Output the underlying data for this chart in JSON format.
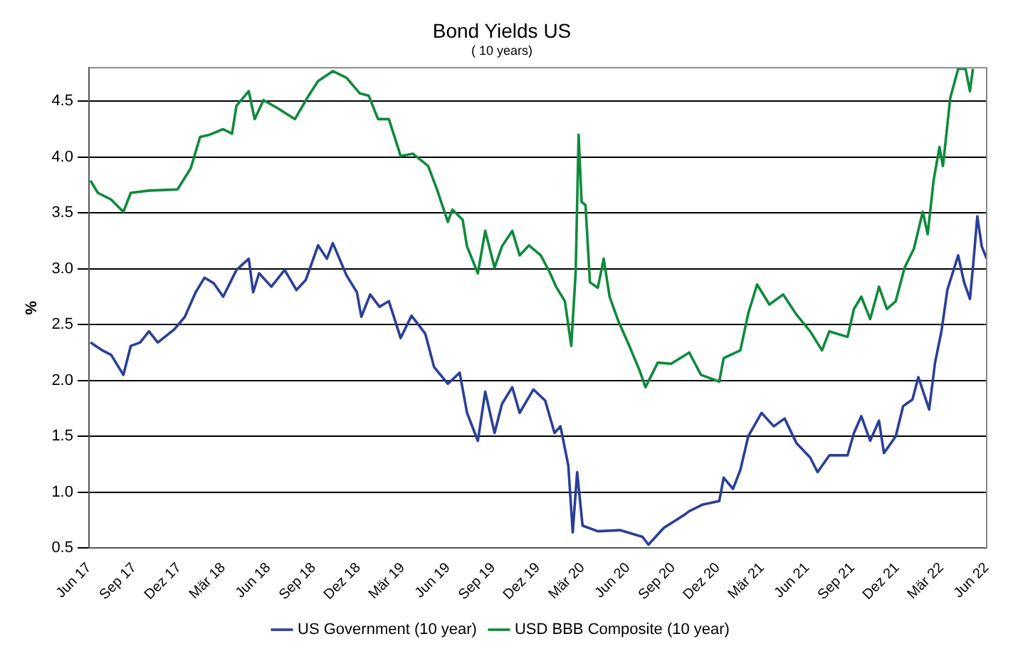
{
  "chart_data": {
    "type": "line",
    "title": "Bond Yields US",
    "subtitle": "( 10 years)",
    "ylabel": "%",
    "xlim": [
      "2017-06",
      "2022-06"
    ],
    "xticks": [
      {
        "value": "2017-06",
        "label": "Jun 17"
      },
      {
        "value": "2017-09",
        "label": "Sep 17"
      },
      {
        "value": "2017-12",
        "label": "Dez 17"
      },
      {
        "value": "2018-03",
        "label": "Mär 18"
      },
      {
        "value": "2018-06",
        "label": "Jun 18"
      },
      {
        "value": "2018-09",
        "label": "Sep 18"
      },
      {
        "value": "2018-12",
        "label": "Dez 18"
      },
      {
        "value": "2019-03",
        "label": "Mär 19"
      },
      {
        "value": "2019-06",
        "label": "Jun 19"
      },
      {
        "value": "2019-09",
        "label": "Sep 19"
      },
      {
        "value": "2019-12",
        "label": "Dez 19"
      },
      {
        "value": "2020-03",
        "label": "Mär 20"
      },
      {
        "value": "2020-06",
        "label": "Jun 20"
      },
      {
        "value": "2020-09",
        "label": "Sep 20"
      },
      {
        "value": "2020-12",
        "label": "Dez 20"
      },
      {
        "value": "2021-03",
        "label": "Mär 21"
      },
      {
        "value": "2021-06",
        "label": "Jun 21"
      },
      {
        "value": "2021-09",
        "label": "Sep 21"
      },
      {
        "value": "2021-12",
        "label": "Dez 21"
      },
      {
        "value": "2022-03",
        "label": "Mär 22"
      },
      {
        "value": "2022-06",
        "label": "Jun 22"
      }
    ],
    "ylim": [
      0.5,
      4.8
    ],
    "yticks": [
      {
        "value": 0.5,
        "label": "0.5"
      },
      {
        "value": 1,
        "label": "1.0"
      },
      {
        "value": 1.5,
        "label": "1.5"
      },
      {
        "value": 2,
        "label": "2.0"
      },
      {
        "value": 2.5,
        "label": "2.5"
      },
      {
        "value": 3,
        "label": "3.0"
      },
      {
        "value": 3.5,
        "label": "3.5"
      },
      {
        "value": 4,
        "label": "4.0"
      },
      {
        "value": 4.5,
        "label": "4.5"
      }
    ],
    "grid": "y",
    "legend": "bottom",
    "marker": "none",
    "line_style": "solid",
    "series": [
      {
        "name": "US Government (10 year)",
        "color": "#2b3f97",
        "x": [
          "2017-06-04",
          "2017-06-28",
          "2017-07-16",
          "2017-08-10",
          "2017-08-25",
          "2017-09-13",
          "2017-10-01",
          "2017-10-19",
          "2017-11-22",
          "2017-12-13",
          "2018-01-04",
          "2018-01-22",
          "2018-02-10",
          "2018-03-01",
          "2018-03-28",
          "2018-04-22",
          "2018-05-01",
          "2018-05-13",
          "2018-06-07",
          "2018-07-04",
          "2018-07-28",
          "2018-08-16",
          "2018-09-10",
          "2018-09-28",
          "2018-10-10",
          "2018-11-07",
          "2018-11-28",
          "2018-12-07",
          "2018-12-25",
          "2019-01-13",
          "2019-02-01",
          "2019-02-25",
          "2019-03-19",
          "2019-04-16",
          "2019-05-04",
          "2019-06-01",
          "2019-06-25",
          "2019-07-10",
          "2019-08-01",
          "2019-08-16",
          "2019-09-04",
          "2019-09-19",
          "2019-10-10",
          "2019-10-25",
          "2019-11-22",
          "2019-12-16",
          "2020-01-04",
          "2020-01-16",
          "2020-02-01",
          "2020-02-10",
          "2020-02-19",
          "2020-03-01",
          "2020-04-01",
          "2020-05-16",
          "2020-07-01",
          "2020-07-13",
          "2020-08-13",
          "2020-09-25",
          "2020-10-04",
          "2020-11-01",
          "2020-12-04",
          "2020-12-13",
          "2021-01-01",
          "2021-01-16",
          "2021-02-01",
          "2021-02-28",
          "2021-03-25",
          "2021-04-16",
          "2021-05-10",
          "2021-06-07",
          "2021-06-22",
          "2021-07-16",
          "2021-08-22",
          "2021-09-04",
          "2021-09-19",
          "2021-10-07",
          "2021-10-25",
          "2021-11-04",
          "2021-11-28",
          "2021-12-13",
          "2022-01-01",
          "2022-01-13",
          "2022-02-04",
          "2022-02-16",
          "2022-03-01",
          "2022-03-13",
          "2022-04-04",
          "2022-04-16",
          "2022-04-28",
          "2022-05-04",
          "2022-05-13",
          "2022-05-22",
          "2022-06-01"
        ],
        "values": [
          2.34,
          2.27,
          2.23,
          2.05,
          2.31,
          2.34,
          2.44,
          2.34,
          2.46,
          2.57,
          2.79,
          2.92,
          2.87,
          2.75,
          2.99,
          3.09,
          2.79,
          2.96,
          2.84,
          2.99,
          2.81,
          2.9,
          3.21,
          3.09,
          3.23,
          2.94,
          2.79,
          2.57,
          2.77,
          2.66,
          2.71,
          2.38,
          2.58,
          2.42,
          2.12,
          1.97,
          2.07,
          1.71,
          1.46,
          1.9,
          1.53,
          1.79,
          1.94,
          1.71,
          1.92,
          1.82,
          1.53,
          1.59,
          1.24,
          0.64,
          1.18,
          0.7,
          0.65,
          0.66,
          0.6,
          0.53,
          0.68,
          0.8,
          0.83,
          0.89,
          0.92,
          1.13,
          1.03,
          1.2,
          1.5,
          1.71,
          1.59,
          1.66,
          1.44,
          1.31,
          1.18,
          1.33,
          1.33,
          1.53,
          1.68,
          1.46,
          1.64,
          1.35,
          1.5,
          1.77,
          1.83,
          2.03,
          1.74,
          2.16,
          2.44,
          2.81,
          3.12,
          2.88,
          2.73,
          3.01,
          3.47,
          3.2,
          3.09
        ]
      },
      {
        "name": "USD BBB Composite (10 year)",
        "color": "#0f8a3c",
        "x": [
          "2017-06-04",
          "2017-06-19",
          "2017-07-16",
          "2017-08-10",
          "2017-08-25",
          "2017-10-01",
          "2017-11-28",
          "2017-12-25",
          "2018-01-13",
          "2018-02-01",
          "2018-03-01",
          "2018-03-19",
          "2018-03-28",
          "2018-04-22",
          "2018-05-04",
          "2018-05-22",
          "2018-06-19",
          "2018-07-25",
          "2018-08-19",
          "2018-09-10",
          "2018-10-10",
          "2018-11-07",
          "2018-12-04",
          "2018-12-22",
          "2019-01-10",
          "2019-02-01",
          "2019-02-25",
          "2019-03-22",
          "2019-04-22",
          "2019-05-10",
          "2019-06-01",
          "2019-06-10",
          "2019-07-01",
          "2019-07-10",
          "2019-08-01",
          "2019-08-16",
          "2019-09-04",
          "2019-09-19",
          "2019-10-10",
          "2019-10-25",
          "2019-11-13",
          "2019-12-07",
          "2019-12-25",
          "2020-01-07",
          "2020-01-25",
          "2020-02-07",
          "2020-02-16",
          "2020-02-22",
          "2020-02-28",
          "2020-03-07",
          "2020-03-16",
          "2020-04-01",
          "2020-04-13",
          "2020-04-25",
          "2020-05-13",
          "2020-06-04",
          "2020-06-25",
          "2020-07-07",
          "2020-08-01",
          "2020-08-28",
          "2020-10-04",
          "2020-10-28",
          "2020-12-04",
          "2020-12-13",
          "2021-01-16",
          "2021-02-01",
          "2021-02-19",
          "2021-03-16",
          "2021-04-13",
          "2021-05-10",
          "2021-06-07",
          "2021-07-01",
          "2021-07-16",
          "2021-08-22",
          "2021-09-04",
          "2021-09-19",
          "2021-10-07",
          "2021-10-25",
          "2021-11-10",
          "2021-11-28",
          "2021-12-16",
          "2022-01-04",
          "2022-01-22",
          "2022-02-01",
          "2022-02-13",
          "2022-02-25",
          "2022-03-04",
          "2022-03-19",
          "2022-04-04",
          "2022-04-19",
          "2022-04-28",
          "2022-05-04"
        ],
        "values": [
          3.79,
          3.68,
          3.62,
          3.51,
          3.68,
          3.7,
          3.71,
          3.9,
          4.18,
          4.2,
          4.25,
          4.21,
          4.46,
          4.59,
          4.34,
          4.51,
          4.44,
          4.34,
          4.53,
          4.68,
          4.77,
          4.71,
          4.57,
          4.55,
          4.34,
          4.34,
          4.01,
          4.03,
          3.92,
          3.71,
          3.42,
          3.53,
          3.44,
          3.2,
          2.96,
          3.34,
          3.01,
          3.2,
          3.34,
          3.12,
          3.21,
          3.12,
          2.97,
          2.84,
          2.71,
          2.31,
          2.97,
          4.2,
          3.6,
          3.57,
          2.88,
          2.83,
          3.09,
          2.75,
          2.53,
          2.31,
          2.09,
          1.94,
          2.16,
          2.15,
          2.25,
          2.05,
          1.99,
          2.2,
          2.27,
          2.6,
          2.86,
          2.68,
          2.77,
          2.59,
          2.44,
          2.27,
          2.44,
          2.39,
          2.64,
          2.75,
          2.55,
          2.84,
          2.64,
          2.71,
          3.01,
          3.18,
          3.51,
          3.31,
          3.79,
          4.09,
          3.92,
          4.53,
          4.79,
          4.79,
          4.59,
          4.79
        ]
      }
    ]
  }
}
